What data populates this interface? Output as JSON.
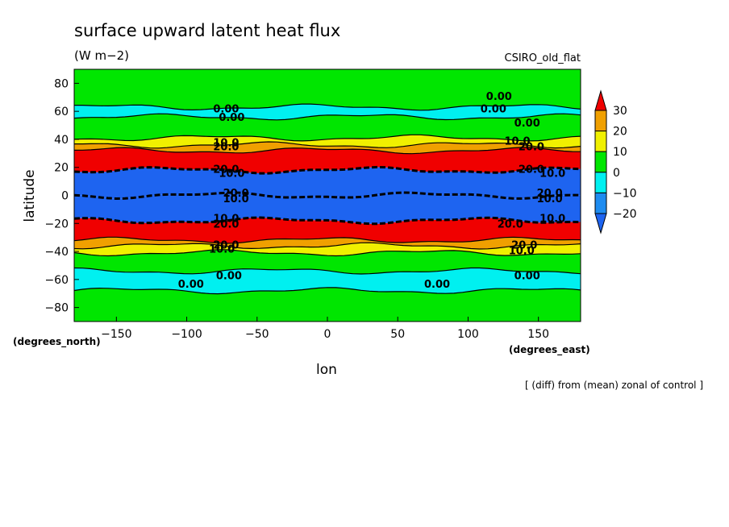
{
  "chart_data": {
    "type": "heatmap",
    "title": "surface upward latent heat flux",
    "units": "(W m−2)",
    "model_label": "CSIRO_old_flat",
    "xlabel": "lon",
    "ylabel": "latitude",
    "x_units": "(degrees_east)",
    "y_units": "(degrees_north)",
    "footnote": "[ (diff) from (mean) zonal of control ]",
    "xlim": [
      -180,
      180
    ],
    "ylim": [
      -90,
      90
    ],
    "x_ticks": [
      {
        "value": -150,
        "label": "−150"
      },
      {
        "value": -100,
        "label": "−100"
      },
      {
        "value": -50,
        "label": "−50"
      },
      {
        "value": 0,
        "label": "0"
      },
      {
        "value": 50,
        "label": "50"
      },
      {
        "value": 100,
        "label": "100"
      },
      {
        "value": 150,
        "label": "150"
      }
    ],
    "y_ticks": [
      {
        "value": 80,
        "label": "80"
      },
      {
        "value": 60,
        "label": "60"
      },
      {
        "value": 40,
        "label": "40"
      },
      {
        "value": 20,
        "label": "20"
      },
      {
        "value": 0,
        "label": "0"
      },
      {
        "value": -20,
        "label": "−20"
      },
      {
        "value": -40,
        "label": "−40"
      },
      {
        "value": -60,
        "label": "−60"
      },
      {
        "value": -80,
        "label": "−80"
      }
    ],
    "colorbar": {
      "levels": [
        -20,
        -10,
        0,
        10,
        20,
        30
      ],
      "labels": [
        "30",
        "20",
        "10",
        "0",
        "−10",
        "−20"
      ],
      "colors": {
        "below_-20": "#1e64f0",
        "-20_-10": "#1e8cf0",
        "-10_0": "#00f0f0",
        "0_10": "#00e600",
        "10_20": "#f0f000",
        "20_30": "#f0a000",
        "above_30": "#f00000"
      }
    },
    "zonal_bands": [
      {
        "lat_from": -90,
        "lat_to": -68,
        "class": "0_10"
      },
      {
        "lat_from": -68,
        "lat_to": -54,
        "class": "-10_0"
      },
      {
        "lat_from": -54,
        "lat_to": -41,
        "class": "0_10"
      },
      {
        "lat_from": -41,
        "lat_to": -36,
        "class": "10_20"
      },
      {
        "lat_from": -36,
        "lat_to": -32,
        "class": "20_30"
      },
      {
        "lat_from": -32,
        "lat_to": -18,
        "class": "above_30"
      },
      {
        "lat_from": -18,
        "lat_to": 0,
        "class": "below_-20"
      },
      {
        "lat_from": 0,
        "lat_to": 18,
        "class": "below_-20"
      },
      {
        "lat_from": 18,
        "lat_to": 32,
        "class": "above_30"
      },
      {
        "lat_from": 32,
        "lat_to": 36,
        "class": "20_30"
      },
      {
        "lat_from": 36,
        "lat_to": 41,
        "class": "10_20"
      },
      {
        "lat_from": 41,
        "lat_to": 56,
        "class": "0_10"
      },
      {
        "lat_from": 56,
        "lat_to": 63,
        "class": "-10_0"
      },
      {
        "lat_from": 63,
        "lat_to": 90,
        "class": "0_10"
      }
    ],
    "contour_labels": [
      {
        "lon": -72,
        "lat": 62,
        "text": "0.00"
      },
      {
        "lon": -68,
        "lat": 56,
        "text": "0.00"
      },
      {
        "lon": 122,
        "lat": 71,
        "text": "0.00"
      },
      {
        "lon": 118,
        "lat": 62,
        "text": "0.00"
      },
      {
        "lon": 142,
        "lat": 52,
        "text": "0.00"
      },
      {
        "lon": -72,
        "lat": 38,
        "text": "10.0"
      },
      {
        "lon": -72,
        "lat": 35,
        "text": "20.0"
      },
      {
        "lon": 135,
        "lat": 39,
        "text": "10.0"
      },
      {
        "lon": 145,
        "lat": 35,
        "text": "20.0"
      },
      {
        "lon": -72,
        "lat": 19,
        "text": "20.0"
      },
      {
        "lon": -68,
        "lat": 16,
        "text": "10.0"
      },
      {
        "lon": 145,
        "lat": 19,
        "text": "20.0"
      },
      {
        "lon": 160,
        "lat": 16,
        "text": "10.0"
      },
      {
        "lon": -65,
        "lat": 2,
        "text": "20.0"
      },
      {
        "lon": -65,
        "lat": -2,
        "text": "10.0"
      },
      {
        "lon": 158,
        "lat": 2,
        "text": "20.0"
      },
      {
        "lon": 158,
        "lat": -2,
        "text": "10.0"
      },
      {
        "lon": -72,
        "lat": -16,
        "text": "10.0"
      },
      {
        "lon": -72,
        "lat": -20,
        "text": "20.0"
      },
      {
        "lon": 130,
        "lat": -20,
        "text": "20.0"
      },
      {
        "lon": 160,
        "lat": -16,
        "text": "10.0"
      },
      {
        "lon": -72,
        "lat": -35,
        "text": "20.0"
      },
      {
        "lon": -75,
        "lat": -38,
        "text": "10.0"
      },
      {
        "lon": 140,
        "lat": -35,
        "text": "20.0"
      },
      {
        "lon": 138,
        "lat": -39,
        "text": "10.0"
      },
      {
        "lon": -70,
        "lat": -57,
        "text": "0.00"
      },
      {
        "lon": -97,
        "lat": -63,
        "text": "0.00"
      },
      {
        "lon": 78,
        "lat": -63,
        "text": "0.00"
      },
      {
        "lon": 142,
        "lat": -57,
        "text": "0.00"
      }
    ]
  }
}
